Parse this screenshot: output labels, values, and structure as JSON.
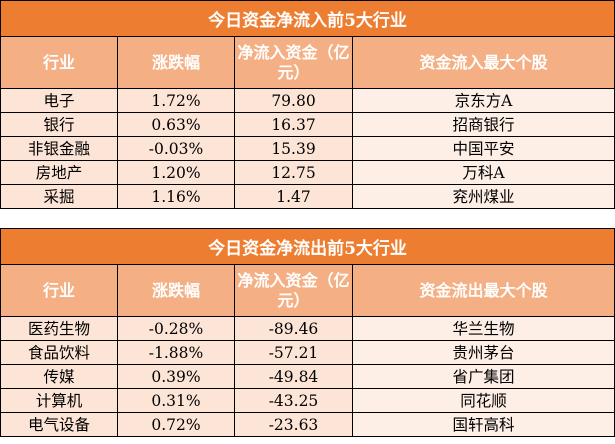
{
  "inflow": {
    "title": "今日资金净流入前5大行业",
    "headers": [
      "行业",
      "涨跌幅",
      "净流入资金（亿元）",
      "资金流入最大个股"
    ],
    "rows": [
      [
        "电子",
        "1.72%",
        "79.80",
        "京东方A"
      ],
      [
        "银行",
        "0.63%",
        "16.37",
        "招商银行"
      ],
      [
        "非银金融",
        "-0.03%",
        "15.39",
        "中国平安"
      ],
      [
        "房地产",
        "1.20%",
        "12.75",
        "万科A"
      ],
      [
        "采掘",
        "1.16%",
        "1.47",
        "兖州煤业"
      ]
    ]
  },
  "outflow": {
    "title": "今日资金净流出前5大行业",
    "headers": [
      "行业",
      "涨跌幅",
      "净流入资金（亿元）",
      "资金流出最大个股"
    ],
    "rows": [
      [
        "医药生物",
        "-0.28%",
        "-89.46",
        "华兰生物"
      ],
      [
        "食品饮料",
        "-1.88%",
        "-57.21",
        "贵州茅台"
      ],
      [
        "传媒",
        "0.39%",
        "-49.84",
        "省广集团"
      ],
      [
        "计算机",
        "0.31%",
        "-43.25",
        "同花顺"
      ],
      [
        "电气设备",
        "0.72%",
        "-23.63",
        "国轩高科"
      ]
    ]
  }
}
